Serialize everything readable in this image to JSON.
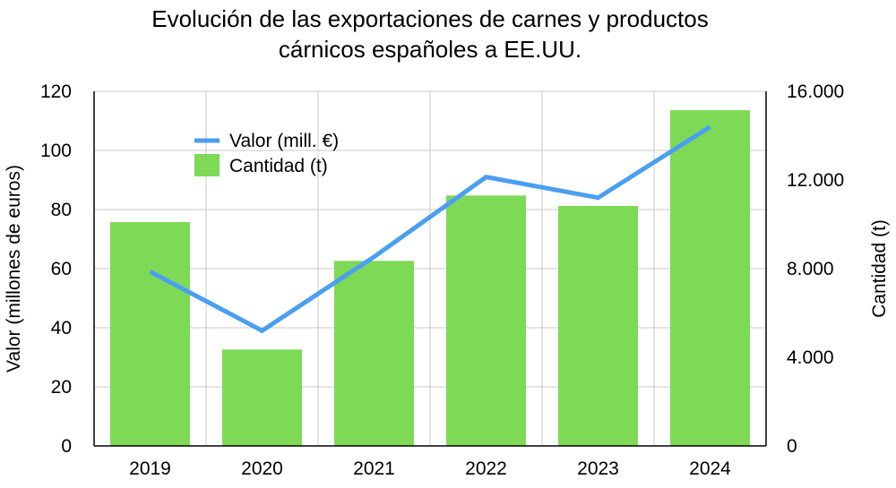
{
  "chart_data": {
    "type": "bar",
    "title_lines": [
      "Evolución de las exportaciones de carnes y productos",
      "cárnicos españoles a EE.UU."
    ],
    "categories": [
      "2019",
      "2020",
      "2021",
      "2022",
      "2023",
      "2024"
    ],
    "series": [
      {
        "name": "Cantidad (t)",
        "type": "bar",
        "axis": "right",
        "color": "#7ed957",
        "values": [
          10100,
          4350,
          8350,
          11300,
          10830,
          15150
        ]
      },
      {
        "name": "Valor (mill. €)",
        "type": "line",
        "axis": "left",
        "color": "#4a9ff0",
        "values": [
          59,
          39,
          64,
          91,
          84,
          108
        ]
      }
    ],
    "ylabel": "Valor (millones de euros)",
    "y2label": "Cantidad (t)",
    "ylim": [
      0,
      120
    ],
    "y2lim": [
      0,
      16000
    ],
    "yticks": [
      "0",
      "20",
      "40",
      "60",
      "80",
      "100",
      "120"
    ],
    "y2ticks": [
      "0",
      "4.000",
      "8.000",
      "12.000",
      "16.000"
    ],
    "grid": true,
    "legend_position": "top-left"
  }
}
